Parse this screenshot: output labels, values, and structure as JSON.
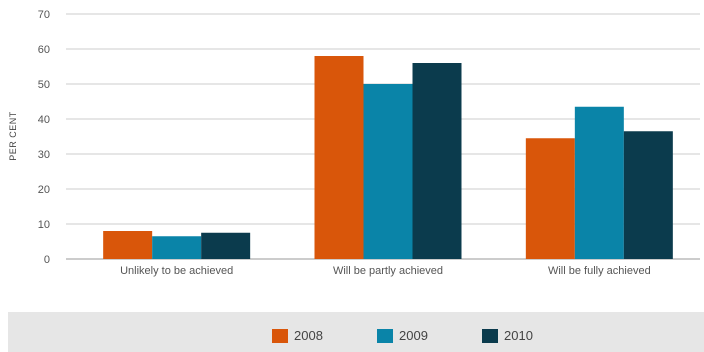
{
  "chart_data": {
    "type": "bar",
    "title": "",
    "xlabel": "",
    "ylabel": "PER CENT",
    "ylim": [
      0,
      70
    ],
    "yticks": [
      0,
      10,
      20,
      30,
      40,
      50,
      60,
      70
    ],
    "grid": true,
    "legend_position": "bottom",
    "categories": [
      "Unlikely to be achieved",
      "Will be partly achieved",
      "Will be fully achieved"
    ],
    "series": [
      {
        "name": "2008",
        "color": "#d9560a",
        "values": [
          8,
          58,
          34.5
        ]
      },
      {
        "name": "2009",
        "color": "#0a84a8",
        "values": [
          6.5,
          50,
          43.5
        ]
      },
      {
        "name": "2010",
        "color": "#0b3b4d",
        "values": [
          7.5,
          56,
          36.5
        ]
      }
    ]
  }
}
